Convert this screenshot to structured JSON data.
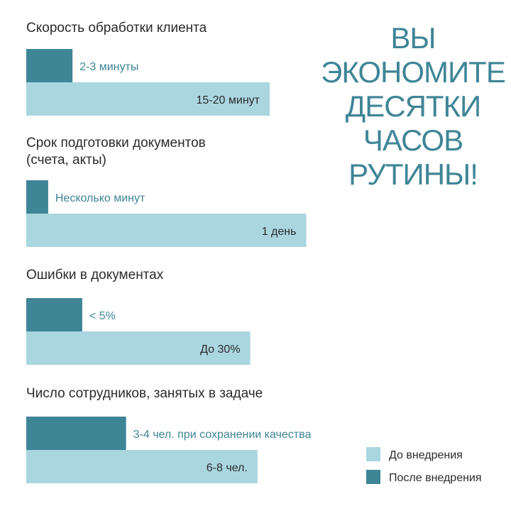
{
  "chart_data": {
    "type": "bar",
    "orientation": "horizontal",
    "headline": [
      "ВЫ",
      "ЭКОНОМИТЕ",
      "ДЕСЯТКИ",
      "ЧАСОВ",
      "РУТИНЫ!"
    ],
    "colors": {
      "before": "#aad6e0",
      "after": "#3e8596",
      "text": "#2b2b2b"
    },
    "groups": [
      {
        "title_lines": [
          "Скорость обработки клиента"
        ],
        "after": {
          "value": 0.19,
          "label": "2-3 минуты"
        },
        "before": {
          "value": 1.0,
          "label": "15-20 минут"
        }
      },
      {
        "title_lines": [
          "Срок подготовки документов",
          "(счета, акты)"
        ],
        "after": {
          "value": 0.09,
          "label": "Несколько минут"
        },
        "before": {
          "value": 1.15,
          "label": "1 день"
        }
      },
      {
        "title_lines": [
          "Ошибки в документах"
        ],
        "after": {
          "value": 0.23,
          "label": "< 5%"
        },
        "before": {
          "value": 0.92,
          "label": "До 30%"
        }
      },
      {
        "title_lines": [
          "Число сотрудников, занятых в задаче"
        ],
        "after": {
          "value": 0.41,
          "label": "3-4 чел. при сохранении качества"
        },
        "before": {
          "value": 0.95,
          "label": "6-8 чел."
        }
      }
    ],
    "legend": [
      {
        "key": "before",
        "label": "До внедрения"
      },
      {
        "key": "after",
        "label": "После внедрения"
      }
    ]
  }
}
